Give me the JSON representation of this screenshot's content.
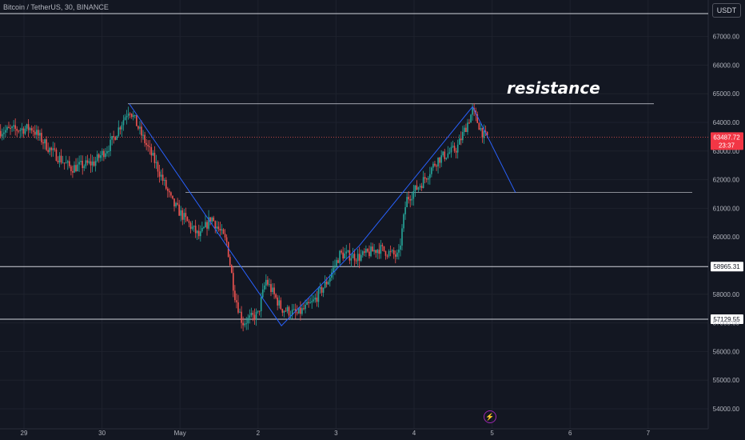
{
  "header": {
    "symbol_title": "Bitcoin / TetherUS, 30, BINANCE",
    "currency_button": "USDT"
  },
  "annotation": {
    "text": "resistance"
  },
  "colors": {
    "background": "#131722",
    "grid": "#1e222d",
    "up_candle": "#26a69a",
    "down_candle": "#ef5350",
    "trend_line": "#2962ff",
    "level_line": "#d1d4dc",
    "price_label_bg": "#f23645"
  },
  "chart_data": {
    "type": "candlestick",
    "y_ticks": [
      67000,
      66000,
      65000,
      64000,
      63000,
      62000,
      61000,
      60000,
      58000,
      57000,
      56000,
      55000,
      54000
    ],
    "ylim": [
      53700,
      67900
    ],
    "x_ticks": [
      {
        "label": "29",
        "day": 29
      },
      {
        "label": "30",
        "day": 30
      },
      {
        "label": "May",
        "day": 31
      },
      {
        "label": "2",
        "day": 32
      },
      {
        "label": "3",
        "day": 33
      },
      {
        "label": "4",
        "day": 34
      },
      {
        "label": "5",
        "day": 35
      },
      {
        "label": "6",
        "day": 36
      },
      {
        "label": "7",
        "day": 37
      }
    ],
    "current_price": {
      "value": "63487.72",
      "countdown": "23:37",
      "price": 63487.72
    },
    "horizontal_levels": [
      {
        "price": 67800,
        "label": ""
      },
      {
        "price": 64650,
        "label": ""
      },
      {
        "price": 61550,
        "label": ""
      },
      {
        "price": 58965.31,
        "label": "58965.31"
      },
      {
        "price": 57129.55,
        "label": "57129.55"
      }
    ],
    "trend_path": [
      {
        "day": 30.35,
        "price": 64650
      },
      {
        "day": 32.3,
        "price": 56900
      },
      {
        "day": 33.3,
        "price": 59700
      },
      {
        "day": 34.75,
        "price": 64550
      },
      {
        "day": 35.3,
        "price": 61550
      }
    ],
    "price_path": [
      {
        "day": 28.7,
        "price": 63700
      },
      {
        "day": 29.1,
        "price": 63800
      },
      {
        "day": 29.35,
        "price": 63000
      },
      {
        "day": 29.6,
        "price": 62400
      },
      {
        "day": 29.9,
        "price": 62600
      },
      {
        "day": 30.1,
        "price": 63200
      },
      {
        "day": 30.35,
        "price": 64500
      },
      {
        "day": 30.5,
        "price": 63600
      },
      {
        "day": 30.7,
        "price": 62500
      },
      {
        "day": 30.9,
        "price": 61200
      },
      {
        "day": 31.1,
        "price": 60500
      },
      {
        "day": 31.25,
        "price": 60000
      },
      {
        "day": 31.4,
        "price": 60700
      },
      {
        "day": 31.6,
        "price": 59800
      },
      {
        "day": 31.7,
        "price": 58000
      },
      {
        "day": 31.8,
        "price": 57000
      },
      {
        "day": 32.0,
        "price": 57300
      },
      {
        "day": 32.1,
        "price": 58500
      },
      {
        "day": 32.3,
        "price": 57500
      },
      {
        "day": 32.5,
        "price": 57300
      },
      {
        "day": 32.7,
        "price": 57700
      },
      {
        "day": 32.9,
        "price": 58500
      },
      {
        "day": 33.05,
        "price": 59400
      },
      {
        "day": 33.3,
        "price": 59300
      },
      {
        "day": 33.55,
        "price": 59600
      },
      {
        "day": 33.8,
        "price": 59300
      },
      {
        "day": 33.9,
        "price": 61300
      },
      {
        "day": 34.1,
        "price": 61900
      },
      {
        "day": 34.3,
        "price": 62700
      },
      {
        "day": 34.55,
        "price": 63100
      },
      {
        "day": 34.75,
        "price": 64400
      },
      {
        "day": 34.9,
        "price": 63500
      }
    ]
  }
}
